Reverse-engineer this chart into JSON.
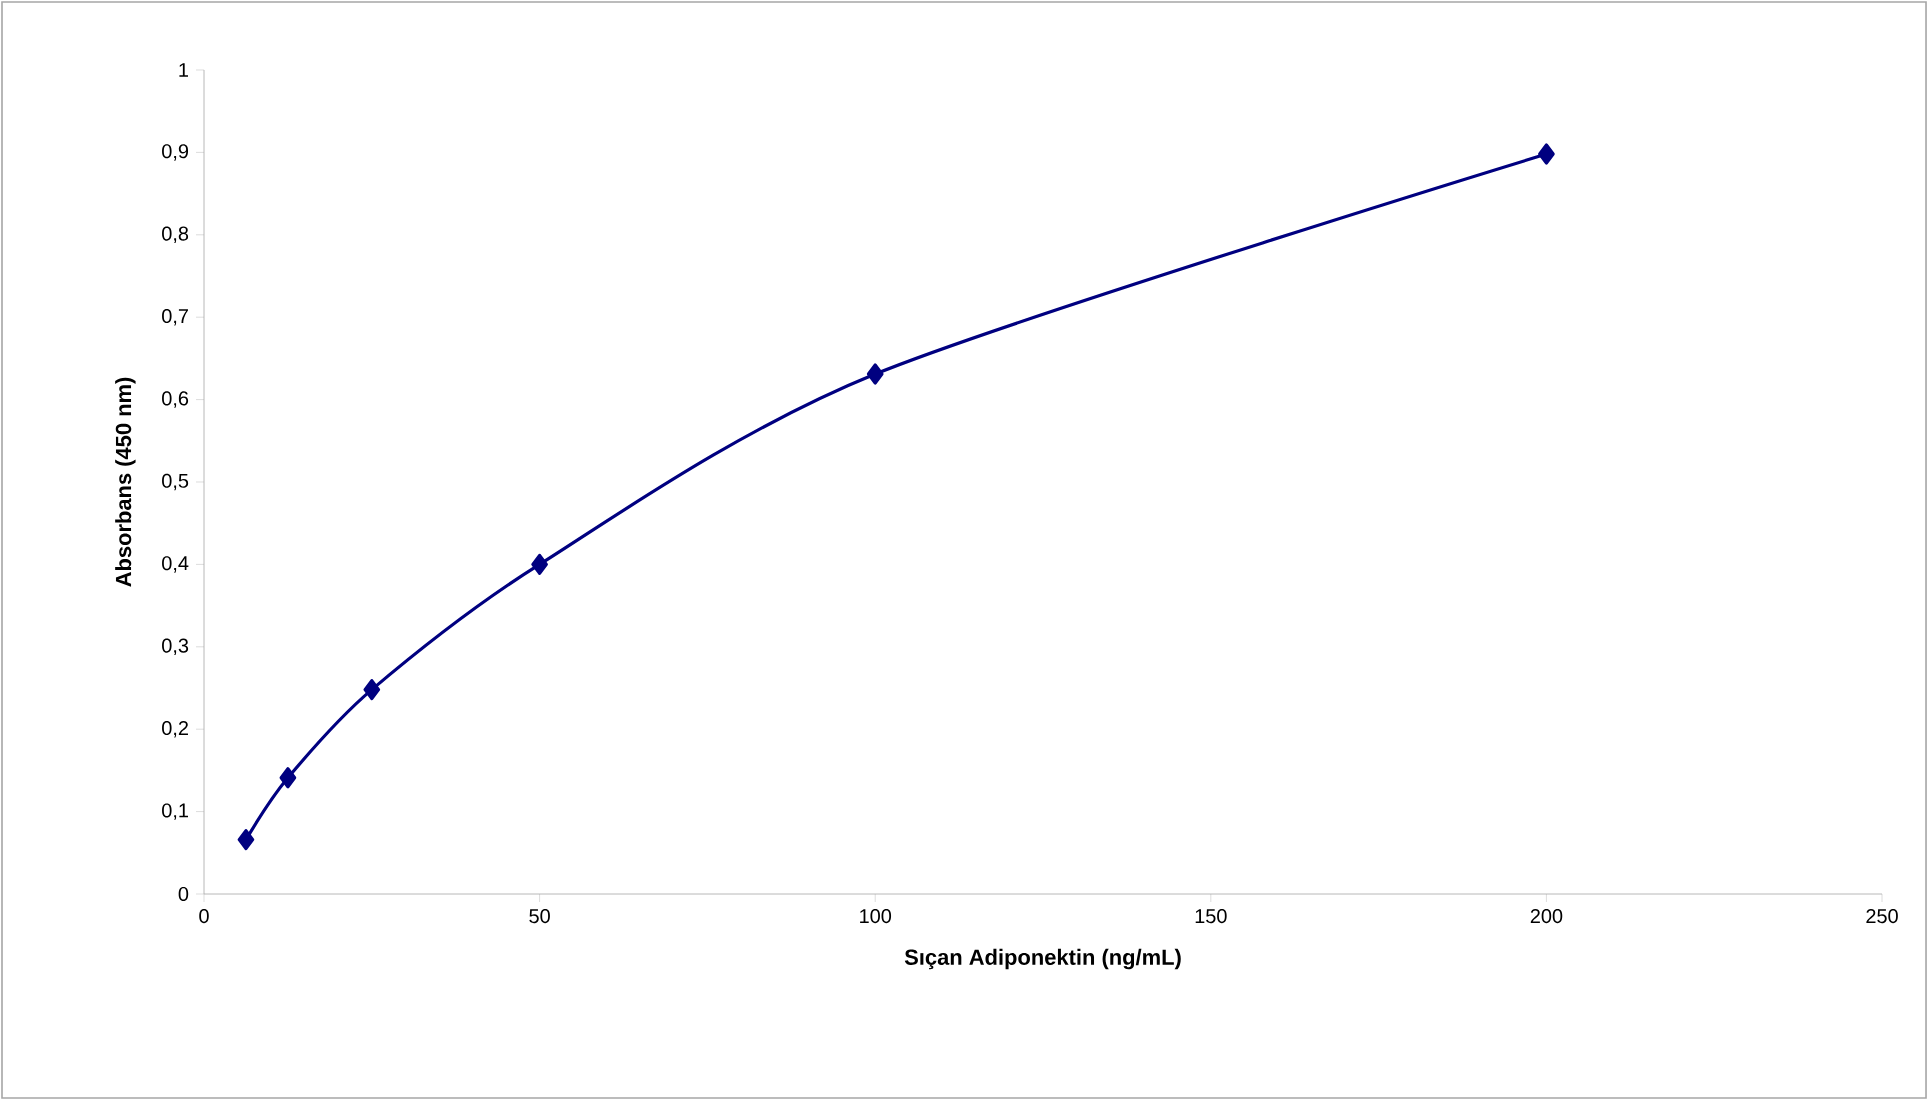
{
  "chart_data": {
    "type": "line",
    "xlabel": "Sıçan Adiponektin (ng/mL)",
    "ylabel": "Absorbans (450 nm)",
    "x": [
      6.25,
      12.5,
      25,
      50,
      100,
      200
    ],
    "values": [
      0.066,
      0.141,
      0.248,
      0.4,
      0.631,
      0.898
    ],
    "color": "#000080",
    "marker": "diamond",
    "line_style": "solid",
    "xlim": [
      0,
      250
    ],
    "ylim": [
      0,
      1
    ],
    "xticks": [
      0,
      50,
      100,
      150,
      200,
      250
    ],
    "yticks": [
      0,
      {
        "value": 0.1,
        "label": "0,1"
      },
      {
        "value": 0.2,
        "label": "0,2"
      },
      {
        "value": 0.3,
        "label": "0,3"
      },
      {
        "value": 0.4,
        "label": "0,4"
      },
      {
        "value": 0.5,
        "label": "0,5"
      },
      {
        "value": 0.6,
        "label": "0,6"
      },
      {
        "value": 0.7,
        "label": "0,7"
      },
      {
        "value": 0.8,
        "label": "0,8"
      },
      {
        "value": 0.9,
        "label": "0,9"
      },
      1
    ]
  }
}
